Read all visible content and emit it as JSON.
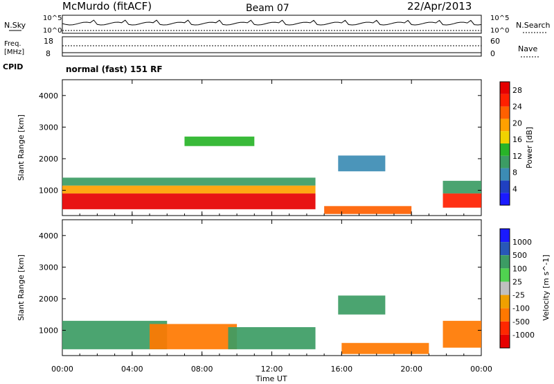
{
  "header": {
    "station": "McMurdo (fitACF)",
    "beam": "Beam 07",
    "date": "22/Apr/2013"
  },
  "top_panels": {
    "nsky_label": "N.Sky",
    "nsearch_label": "N.Search",
    "freq_label": "Freq.",
    "freq_unit": "[MHz]",
    "nave_label": "Nave",
    "cpid_label": "CPID",
    "noise_ticks": [
      "10^5",
      "10^0"
    ],
    "noise_ticks_right": [
      "10^5",
      "10^0"
    ],
    "freq_ticks": [
      "18",
      "8"
    ],
    "nave_ticks": [
      "60",
      "0"
    ],
    "cpid_value": "normal (fast) 151 RF"
  },
  "colors": {
    "power_scale": [
      "#1a1aff",
      "#2040c0",
      "#3c8cb4",
      "#3c9c64",
      "#28b428",
      "#f0d200",
      "#ffa000",
      "#ff6000",
      "#ff2000",
      "#e60000"
    ],
    "velocity_scale": [
      "#1a1aff",
      "#2858b8",
      "#3c9c64",
      "#50d250",
      "#c0c0c0",
      "#f0a000",
      "#ff7800",
      "#ff2800",
      "#e60000"
    ]
  },
  "chart_data": [
    {
      "type": "heatmap",
      "title": "",
      "xlabel": "Time UT",
      "ylabel": "Slant Range [km]",
      "colorbar_label": "Power [dB]",
      "x_ticks": [
        "00:00",
        "04:00",
        "08:00",
        "12:00",
        "16:00",
        "20:00",
        "00:00"
      ],
      "y_ticks": [
        1000,
        2000,
        3000,
        4000
      ],
      "ylim": [
        200,
        4500
      ],
      "colorbar_ticks": [
        4,
        8,
        12,
        16,
        20,
        24,
        28
      ],
      "colorbar_range": [
        0,
        30
      ],
      "regions": [
        {
          "t0": 0.0,
          "t1": 14.5,
          "r0": 400,
          "r1": 900,
          "value": 28
        },
        {
          "t0": 0.0,
          "t1": 14.5,
          "r0": 900,
          "r1": 1150,
          "value": 18
        },
        {
          "t0": 0.0,
          "t1": 14.5,
          "r0": 1150,
          "r1": 1400,
          "value": 10
        },
        {
          "t0": 21.8,
          "t1": 24.0,
          "r0": 450,
          "r1": 900,
          "value": 26
        },
        {
          "t0": 21.8,
          "t1": 24.0,
          "r0": 900,
          "r1": 1300,
          "value": 9
        },
        {
          "t0": 15.0,
          "t1": 20.0,
          "r0": 250,
          "r1": 500,
          "value": 22
        },
        {
          "t0": 15.8,
          "t1": 18.5,
          "r0": 1600,
          "r1": 2100,
          "value": 7
        },
        {
          "t0": 7.0,
          "t1": 11.0,
          "r0": 2400,
          "r1": 2700,
          "value": 14
        }
      ]
    },
    {
      "type": "heatmap",
      "title": "",
      "xlabel": "Time UT",
      "ylabel": "Slant Range [km]",
      "colorbar_label": "Velocity [m s^-1]",
      "x_ticks": [
        "00:00",
        "04:00",
        "08:00",
        "12:00",
        "16:00",
        "20:00",
        "00:00"
      ],
      "y_ticks": [
        1000,
        2000,
        3000,
        4000
      ],
      "ylim": [
        200,
        4500
      ],
      "colorbar_ticks": [
        1000,
        500,
        100,
        25,
        -25,
        -100,
        -500,
        -1000
      ],
      "regions": [
        {
          "t0": 0.0,
          "t1": 6.0,
          "r0": 400,
          "r1": 1300,
          "value": 100
        },
        {
          "t0": 5.0,
          "t1": 10.0,
          "r0": 400,
          "r1": 1200,
          "value": -300
        },
        {
          "t0": 9.5,
          "t1": 14.5,
          "r0": 400,
          "r1": 1100,
          "value": 300
        },
        {
          "t0": 21.8,
          "t1": 24.0,
          "r0": 450,
          "r1": 1300,
          "value": -400
        },
        {
          "t0": 15.8,
          "t1": 18.5,
          "r0": 1500,
          "r1": 2100,
          "value": 150
        },
        {
          "t0": 16.0,
          "t1": 21.0,
          "r0": 250,
          "r1": 600,
          "value": -150
        }
      ]
    }
  ]
}
